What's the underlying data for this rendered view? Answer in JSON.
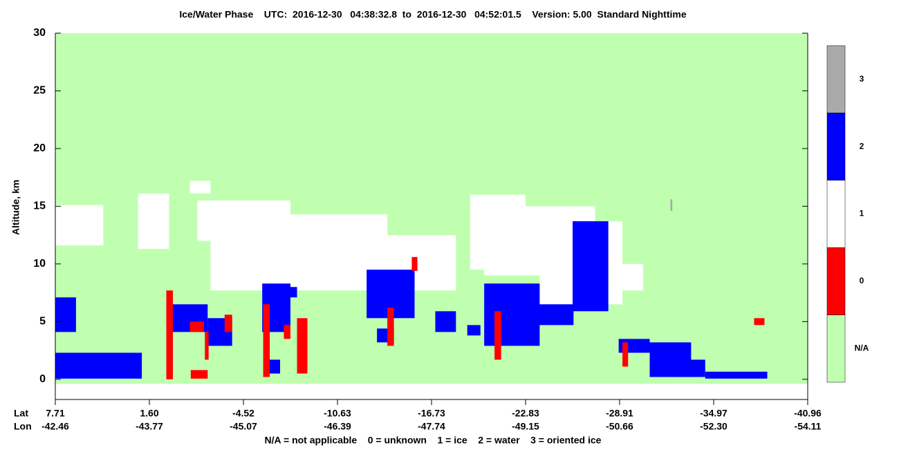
{
  "chart_data": {
    "type": "curtain",
    "title": "Ice/Water Phase    UTC:  2016-12-30   04:38:32.8  to  2016-12-30   04:52:01.5    Version: 5.00  Standard Nighttime",
    "ylabel": "Altitude, km",
    "xlabel": "Lat",
    "xlabel2": "Lon",
    "footer": "N/A = not applicable    0 = unknown    1 = ice    2 = water    3 = oriented ice",
    "ylim": [
      -1.75,
      30
    ],
    "yticks": [
      0,
      5,
      10,
      15,
      20,
      25,
      30
    ],
    "xlim": [
      0,
      8
    ],
    "xticks": [
      {
        "value": 0,
        "label": "7.71"
      },
      {
        "value": 1,
        "label": "1.60"
      },
      {
        "value": 2,
        "label": "-4.52"
      },
      {
        "value": 3,
        "label": "-10.63"
      },
      {
        "value": 4,
        "label": "-16.73"
      },
      {
        "value": 5,
        "label": "-22.83"
      },
      {
        "value": 6,
        "label": "-28.91"
      },
      {
        "value": 7,
        "label": "-34.97"
      },
      {
        "value": 8,
        "label": "-40.96"
      }
    ],
    "xticks2": [
      {
        "value": 0,
        "label": "-42.46"
      },
      {
        "value": 1,
        "label": "-43.77"
      },
      {
        "value": 2,
        "label": "-45.07"
      },
      {
        "value": 3,
        "label": "-46.39"
      },
      {
        "value": 4,
        "label": "-47.74"
      },
      {
        "value": 5,
        "label": "-49.15"
      },
      {
        "value": 6,
        "label": "-50.66"
      },
      {
        "value": 7,
        "label": "-52.30"
      },
      {
        "value": 8,
        "label": "-54.11"
      }
    ],
    "colorbar": {
      "categories": [
        "N/A",
        0,
        1,
        2,
        3
      ],
      "colors": [
        "#c0ffb0",
        "#ff0000",
        "#ffffff",
        "#0000ff",
        "#aaaaaa"
      ]
    },
    "regions": [
      {
        "phase": "N/A",
        "x": [
          0,
          8
        ],
        "alt": [
          -0.4,
          30
        ]
      },
      {
        "phase": 1,
        "x": [
          0,
          0.51
        ],
        "alt": [
          11.6,
          15.1
        ]
      },
      {
        "phase": 1,
        "x": [
          0.88,
          1.21
        ],
        "alt": [
          11.3,
          16.1
        ]
      },
      {
        "phase": 1,
        "x": [
          1.43,
          1.65
        ],
        "alt": [
          16.1,
          17.2
        ]
      },
      {
        "phase": 1,
        "x": [
          1.51,
          2.5
        ],
        "alt": [
          12,
          15.5
        ]
      },
      {
        "phase": 1,
        "x": [
          1.65,
          3.53
        ],
        "alt": [
          7.7,
          14.3
        ]
      },
      {
        "phase": 1,
        "x": [
          2.5,
          3.38
        ],
        "alt": [
          10.7,
          13
        ]
      },
      {
        "phase": 1,
        "x": [
          3.38,
          4.26
        ],
        "alt": [
          7.7,
          12.5
        ]
      },
      {
        "phase": 1,
        "x": [
          4.41,
          5.0
        ],
        "alt": [
          9.5,
          16
        ]
      },
      {
        "phase": 1,
        "x": [
          4.56,
          5.74
        ],
        "alt": [
          9,
          15
        ]
      },
      {
        "phase": 1,
        "x": [
          5.15,
          6.03
        ],
        "alt": [
          6.5,
          13.7
        ]
      },
      {
        "phase": 1,
        "x": [
          5.88,
          6.25
        ],
        "alt": [
          7.7,
          10
        ]
      },
      {
        "phase": 2,
        "x": [
          0,
          0.22
        ],
        "alt": [
          4.1,
          7.1
        ]
      },
      {
        "phase": 2,
        "x": [
          0,
          0.92
        ],
        "alt": [
          0.06,
          2.3
        ]
      },
      {
        "phase": 2,
        "x": [
          1.18,
          1.62
        ],
        "alt": [
          4.1,
          6.5
        ]
      },
      {
        "phase": 2,
        "x": [
          1.62,
          1.88
        ],
        "alt": [
          2.9,
          5.3
        ]
      },
      {
        "phase": 2,
        "x": [
          2.2,
          2.5
        ],
        "alt": [
          4.1,
          8.3
        ]
      },
      {
        "phase": 2,
        "x": [
          2.24,
          2.39
        ],
        "alt": [
          0.5,
          1.7
        ]
      },
      {
        "phase": 2,
        "x": [
          2.35,
          2.57
        ],
        "alt": [
          7.1,
          8.0
        ]
      },
      {
        "phase": 2,
        "x": [
          3.31,
          3.82
        ],
        "alt": [
          5.3,
          9.5
        ]
      },
      {
        "phase": 2,
        "x": [
          3.42,
          3.6
        ],
        "alt": [
          3.2,
          4.4
        ]
      },
      {
        "phase": 2,
        "x": [
          4.04,
          4.26
        ],
        "alt": [
          4.1,
          5.9
        ]
      },
      {
        "phase": 2,
        "x": [
          4.38,
          4.52
        ],
        "alt": [
          3.8,
          4.7
        ]
      },
      {
        "phase": 2,
        "x": [
          4.56,
          5.15
        ],
        "alt": [
          2.9,
          8.3
        ]
      },
      {
        "phase": 2,
        "x": [
          5.0,
          5.51
        ],
        "alt": [
          4.7,
          6.5
        ]
      },
      {
        "phase": 2,
        "x": [
          5.5,
          5.88
        ],
        "alt": [
          5.9,
          13.7
        ]
      },
      {
        "phase": 2,
        "x": [
          5.99,
          6.32
        ],
        "alt": [
          2.3,
          3.5
        ]
      },
      {
        "phase": 2,
        "x": [
          6.32,
          6.76
        ],
        "alt": [
          0.2,
          3.2
        ]
      },
      {
        "phase": 2,
        "x": [
          6.58,
          6.91
        ],
        "alt": [
          0.2,
          1.7
        ]
      },
      {
        "phase": 2,
        "x": [
          6.91,
          7.57
        ],
        "alt": [
          0.06,
          0.66
        ]
      },
      {
        "phase": 0,
        "x": [
          1.18,
          1.25
        ],
        "alt": [
          0,
          7.7
        ]
      },
      {
        "phase": 0,
        "x": [
          1.43,
          1.58
        ],
        "alt": [
          4.1,
          5
        ]
      },
      {
        "phase": 0,
        "x": [
          1.44,
          1.62
        ],
        "alt": [
          0.06,
          0.8
        ]
      },
      {
        "phase": 0,
        "x": [
          1.59,
          1.63
        ],
        "alt": [
          1.7,
          4.1
        ]
      },
      {
        "phase": 0,
        "x": [
          2.21,
          2.28
        ],
        "alt": [
          0.2,
          6.5
        ]
      },
      {
        "phase": 0,
        "x": [
          1.8,
          1.88
        ],
        "alt": [
          4.1,
          5.6
        ]
      },
      {
        "phase": 0,
        "x": [
          2.43,
          2.5
        ],
        "alt": [
          3.5,
          4.7
        ]
      },
      {
        "phase": 0,
        "x": [
          2.57,
          2.68
        ],
        "alt": [
          0.5,
          5.3
        ]
      },
      {
        "phase": 0,
        "x": [
          3.53,
          3.6
        ],
        "alt": [
          2.9,
          6.2
        ]
      },
      {
        "phase": 0,
        "x": [
          3.79,
          3.85
        ],
        "alt": [
          9.4,
          10.6
        ]
      },
      {
        "phase": 0,
        "x": [
          4.67,
          4.74
        ],
        "alt": [
          1.7,
          5.9
        ]
      },
      {
        "phase": 0,
        "x": [
          6.03,
          6.09
        ],
        "alt": [
          1.1,
          3.2
        ]
      },
      {
        "phase": 0,
        "x": [
          7.43,
          7.54
        ],
        "alt": [
          4.7,
          5.3
        ]
      },
      {
        "phase": 3,
        "x": [
          6.54,
          6.56
        ],
        "alt": [
          14.6,
          15.6
        ]
      }
    ]
  }
}
